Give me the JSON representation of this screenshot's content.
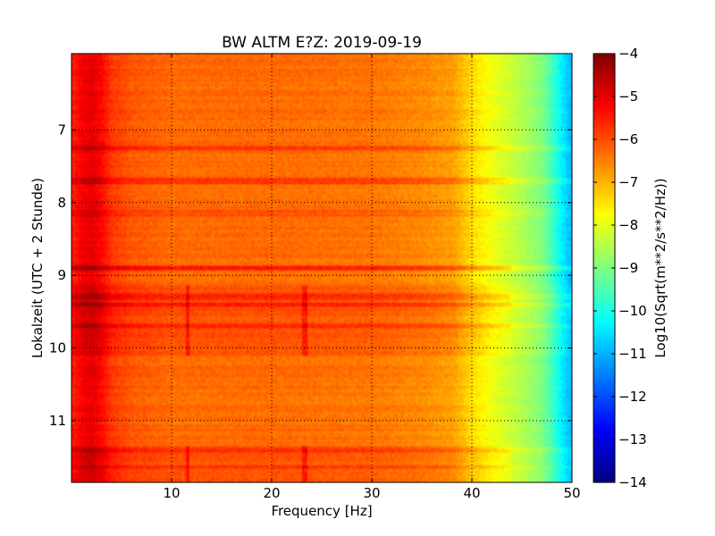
{
  "chart_data": {
    "type": "heatmap",
    "title": "BW ALTM E?Z: 2019-09-19",
    "xlabel": "Frequency [Hz]",
    "ylabel": "Lokalzeit (UTC + 2 Stunde)",
    "colorbar_label": "Log10(Sqrt(m**2/s**2/Hz))",
    "colormap": "jet",
    "xlim": [
      0,
      50
    ],
    "ylim": [
      5.95,
      11.85
    ],
    "y_inverted": true,
    "clim": [
      -14,
      -4
    ],
    "grid": true,
    "x_ticks": [
      10,
      20,
      30,
      40,
      50
    ],
    "x_tick_labels": [
      "10",
      "20",
      "30",
      "40",
      "50"
    ],
    "y_ticks": [
      7,
      8,
      9,
      10,
      11
    ],
    "y_tick_labels": [
      "7",
      "8",
      "9",
      "10",
      "11"
    ],
    "colorbar_ticks": [
      -4,
      -5,
      -6,
      -7,
      -8,
      -9,
      -10,
      -11,
      -12,
      -13,
      -14
    ],
    "colorbar_tick_labels": [
      "−4",
      "−5",
      "−6",
      "−7",
      "−8",
      "−9",
      "−10",
      "−11",
      "−12",
      "−13",
      "−14"
    ],
    "spectral_profile": {
      "frequency_hz": [
        0,
        1,
        2,
        3,
        4,
        6,
        10,
        20,
        30,
        35,
        38,
        40,
        42,
        45,
        47,
        48,
        49,
        50
      ],
      "value": [
        -5.6,
        -5.2,
        -5.0,
        -5.3,
        -5.8,
        -6.1,
        -6.3,
        -6.3,
        -6.4,
        -6.6,
        -6.8,
        -7.4,
        -7.9,
        -8.5,
        -9.0,
        -9.6,
        -10.4,
        -11.0
      ]
    },
    "elevated_bands": [
      {
        "time": 7.25,
        "value_increase": 0.55
      },
      {
        "time": 7.7,
        "value_increase": 0.6
      },
      {
        "time": 8.15,
        "value_increase": 0.3
      },
      {
        "time": 8.9,
        "value_increase": 0.8
      },
      {
        "time": 9.3,
        "value_increase": 0.5
      },
      {
        "time": 9.4,
        "value_increase": 0.5
      },
      {
        "time": 9.7,
        "value_increase": 0.4
      },
      {
        "time": 11.4,
        "value_increase": 0.4
      },
      {
        "time": 11.65,
        "value_increase": 0.3
      }
    ],
    "elevated_periods": [
      {
        "time_range": [
          9.15,
          10.1
        ],
        "value_increase": 0.25
      },
      {
        "time_range": [
          11.35,
          11.85
        ],
        "value_increase": 0.25
      }
    ],
    "narrowband_lines": [
      {
        "frequency_hz": 11.6,
        "time_ranges": [
          [
            9.15,
            10.1
          ],
          [
            11.35,
            11.85
          ]
        ]
      },
      {
        "frequency_hz": 23.3,
        "time_ranges": [
          [
            9.15,
            10.1
          ],
          [
            11.35,
            11.85
          ]
        ]
      }
    ]
  }
}
